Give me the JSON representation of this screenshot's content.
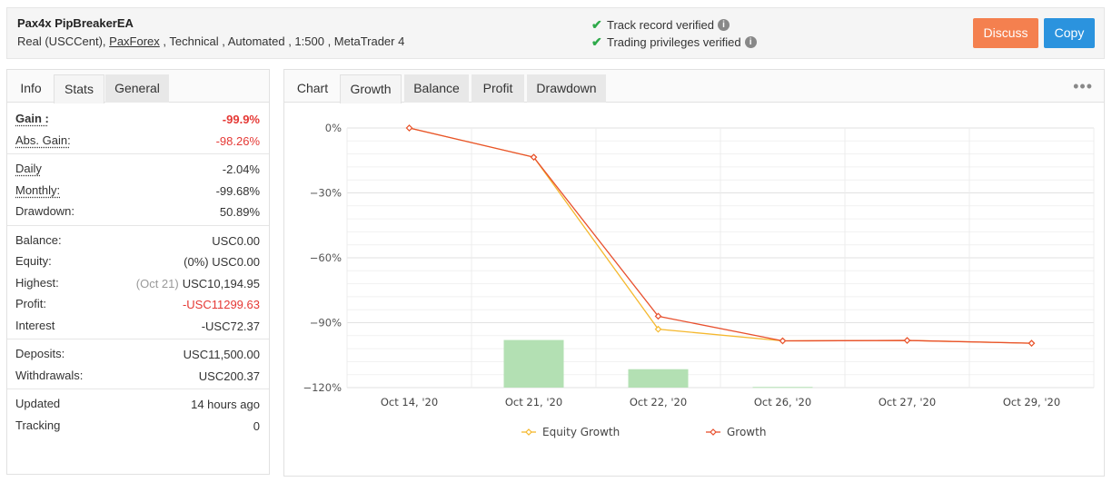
{
  "header": {
    "system_name": "Pax4x PipBreakerEA",
    "account_type": "Real (USCCent)",
    "broker": "PaxForex",
    "desc_rest": " , Technical , Automated , 1:500 , MetaTrader 4",
    "verified_track": "Track record verified",
    "verified_trading": "Trading privileges verified",
    "discuss_label": "Discuss",
    "copy_label": "Copy"
  },
  "left_tabs": [
    "Info",
    "Stats",
    "General"
  ],
  "stats": {
    "gain_label": "Gain :",
    "gain_value": "-99.9%",
    "abs_gain_label": "Abs. Gain:",
    "abs_gain_value": "-98.26%",
    "daily_label": "Daily",
    "daily_value": "-2.04%",
    "monthly_label": "Monthly:",
    "monthly_value": "-99.68%",
    "drawdown_label": "Drawdown:",
    "drawdown_value": "50.89%",
    "balance_label": "Balance:",
    "balance_value": "USC0.00",
    "equity_label": "Equity:",
    "equity_pct": "(0%)",
    "equity_value": "USC0.00",
    "highest_label": "Highest:",
    "highest_date": "(Oct 21)",
    "highest_value": "USC10,194.95",
    "profit_label": "Profit:",
    "profit_value": "-USC11299.63",
    "interest_label": "Interest",
    "interest_value": "-USC72.37",
    "deposits_label": "Deposits:",
    "deposits_value": "USC11,500.00",
    "withdrawals_label": "Withdrawals:",
    "withdrawals_value": "USC200.37",
    "updated_label": "Updated",
    "updated_value": "14 hours ago",
    "tracking_label": "Tracking",
    "tracking_value": "0"
  },
  "right_tabs": [
    "Chart",
    "Growth",
    "Balance",
    "Profit",
    "Drawdown"
  ],
  "more_icon": "ellipsis-icon",
  "colors": {
    "growth": "#e8502e",
    "equity": "#f5b82e",
    "bars": "#b3e0b3",
    "red": "#e53935",
    "verified": "#2eaa4a",
    "discuss": "#f4804f",
    "copy": "#2b93de"
  },
  "chart_data": {
    "type": "line",
    "categories": [
      "Oct 14, '20",
      "Oct 21, '20",
      "Oct 22, '20",
      "Oct 26, '20",
      "Oct 27, '20",
      "Oct 29, '20"
    ],
    "yticks": [
      "0%",
      "−30%",
      "−60%",
      "−90%",
      "−120%"
    ],
    "ylim": [
      -120,
      0
    ],
    "series": [
      {
        "name": "Equity Growth",
        "type": "line",
        "values": [
          0,
          -13.5,
          -93,
          -98.4,
          -98.2,
          -99.5
        ]
      },
      {
        "name": "Growth",
        "type": "line",
        "values": [
          0,
          -13.5,
          -87,
          -98.4,
          -98.2,
          -99.5
        ]
      },
      {
        "name": "",
        "type": "bar",
        "values": [
          null,
          -98,
          -111.5,
          -119.7,
          null,
          null
        ]
      }
    ],
    "legend_position": "bottom",
    "grid": true
  }
}
